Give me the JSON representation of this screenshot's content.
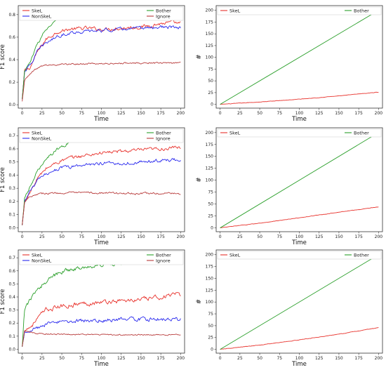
{
  "colors": {
    "SkeL": "#e8322c",
    "NonSkeL": "#2a2aee",
    "Bother": "#2ca02c",
    "Ignore": "#b83b3b"
  },
  "chart_data": [
    {
      "type": "line",
      "panel": "row1-left",
      "xlabel": "Time",
      "ylabel": "F1 score",
      "xlim": [
        -5,
        205
      ],
      "ylim": [
        -0.03,
        0.88
      ],
      "xticks": [
        0,
        25,
        50,
        75,
        100,
        125,
        150,
        175,
        200
      ],
      "yticks": [
        0.0,
        0.2,
        0.4,
        0.6,
        0.8
      ],
      "legend": {
        "left": [
          "SkeL",
          "NonSkeL"
        ],
        "right": [
          "Bother",
          "Ignore"
        ]
      },
      "series": [
        {
          "name": "SkeL",
          "color": "SkeL",
          "noise": 0.013,
          "points": [
            [
              0,
              0.05
            ],
            [
              3,
              0.3
            ],
            [
              10,
              0.33
            ],
            [
              20,
              0.48
            ],
            [
              30,
              0.58
            ],
            [
              45,
              0.65
            ],
            [
              60,
              0.67
            ],
            [
              80,
              0.68
            ],
            [
              100,
              0.67
            ],
            [
              125,
              0.68
            ],
            [
              150,
              0.69
            ],
            [
              175,
              0.72
            ],
            [
              190,
              0.73
            ],
            [
              200,
              0.72
            ]
          ]
        },
        {
          "name": "NonSkeL",
          "color": "NonSkeL",
          "noise": 0.012,
          "points": [
            [
              0,
              0.05
            ],
            [
              3,
              0.3
            ],
            [
              10,
              0.35
            ],
            [
              20,
              0.48
            ],
            [
              30,
              0.55
            ],
            [
              45,
              0.61
            ],
            [
              60,
              0.64
            ],
            [
              80,
              0.65
            ],
            [
              100,
              0.66
            ],
            [
              125,
              0.67
            ],
            [
              150,
              0.68
            ],
            [
              175,
              0.69
            ],
            [
              200,
              0.68
            ]
          ]
        },
        {
          "name": "Bother",
          "color": "Bother",
          "noise": 0.011,
          "points": [
            [
              0,
              0.05
            ],
            [
              3,
              0.3
            ],
            [
              10,
              0.38
            ],
            [
              20,
              0.55
            ],
            [
              30,
              0.67
            ],
            [
              45,
              0.75
            ],
            [
              60,
              0.8
            ],
            [
              80,
              0.82
            ],
            [
              100,
              0.83
            ],
            [
              125,
              0.83
            ],
            [
              150,
              0.84
            ],
            [
              175,
              0.84
            ],
            [
              200,
              0.83
            ]
          ]
        },
        {
          "name": "Ignore",
          "color": "Ignore",
          "noise": 0.006,
          "points": [
            [
              0,
              0.03
            ],
            [
              3,
              0.22
            ],
            [
              10,
              0.28
            ],
            [
              20,
              0.33
            ],
            [
              30,
              0.35
            ],
            [
              50,
              0.36
            ],
            [
              100,
              0.365
            ],
            [
              150,
              0.37
            ],
            [
              200,
              0.37
            ]
          ]
        }
      ]
    },
    {
      "type": "line",
      "panel": "row1-right",
      "xlabel": "Time",
      "ylabel": "#",
      "xlim": [
        -5,
        205
      ],
      "ylim": [
        -8,
        210
      ],
      "xticks": [
        0,
        25,
        50,
        75,
        100,
        125,
        150,
        175,
        200
      ],
      "yticks": [
        0,
        25,
        50,
        75,
        100,
        125,
        150,
        175,
        200
      ],
      "legend": {
        "left": [
          "SkeL"
        ],
        "right": [
          "Bother"
        ]
      },
      "series": [
        {
          "name": "SkeL",
          "color": "SkeL",
          "noise": 0.4,
          "points": [
            [
              0,
              0
            ],
            [
              50,
              5
            ],
            [
              100,
              11
            ],
            [
              150,
              18
            ],
            [
              200,
              26
            ]
          ]
        },
        {
          "name": "Bother",
          "color": "Bother",
          "noise": 0,
          "points": [
            [
              0,
              0
            ],
            [
              200,
              200
            ]
          ]
        }
      ]
    },
    {
      "type": "line",
      "panel": "row2-left",
      "xlabel": "Time",
      "ylabel": "F1 score",
      "xlim": [
        -5,
        205
      ],
      "ylim": [
        -0.03,
        0.76
      ],
      "xticks": [
        0,
        25,
        50,
        75,
        100,
        125,
        150,
        175,
        200
      ],
      "yticks": [
        0.0,
        0.1,
        0.2,
        0.3,
        0.4,
        0.5,
        0.6,
        0.7
      ],
      "legend": {
        "left": [
          "SkeL",
          "NonSkeL"
        ],
        "right": [
          "Bother",
          "Ignore"
        ]
      },
      "series": [
        {
          "name": "SkeL",
          "color": "SkeL",
          "noise": 0.011,
          "points": [
            [
              0,
              0.02
            ],
            [
              3,
              0.2
            ],
            [
              10,
              0.27
            ],
            [
              20,
              0.38
            ],
            [
              30,
              0.45
            ],
            [
              45,
              0.5
            ],
            [
              60,
              0.53
            ],
            [
              80,
              0.55
            ],
            [
              100,
              0.57
            ],
            [
              125,
              0.58
            ],
            [
              150,
              0.59
            ],
            [
              175,
              0.6
            ],
            [
              200,
              0.61
            ]
          ]
        },
        {
          "name": "NonSkeL",
          "color": "NonSkeL",
          "noise": 0.011,
          "points": [
            [
              0,
              0.02
            ],
            [
              3,
              0.2
            ],
            [
              10,
              0.28
            ],
            [
              20,
              0.36
            ],
            [
              30,
              0.41
            ],
            [
              45,
              0.45
            ],
            [
              60,
              0.46
            ],
            [
              80,
              0.48
            ],
            [
              100,
              0.49
            ],
            [
              125,
              0.49
            ],
            [
              150,
              0.5
            ],
            [
              175,
              0.51
            ],
            [
              200,
              0.52
            ]
          ]
        },
        {
          "name": "Bother",
          "color": "Bother",
          "noise": 0.011,
          "points": [
            [
              0,
              0.02
            ],
            [
              3,
              0.22
            ],
            [
              10,
              0.32
            ],
            [
              20,
              0.44
            ],
            [
              30,
              0.53
            ],
            [
              45,
              0.6
            ],
            [
              60,
              0.65
            ],
            [
              80,
              0.68
            ],
            [
              100,
              0.69
            ],
            [
              125,
              0.7
            ],
            [
              150,
              0.7
            ],
            [
              175,
              0.71
            ],
            [
              200,
              0.72
            ]
          ]
        },
        {
          "name": "Ignore",
          "color": "Ignore",
          "noise": 0.006,
          "points": [
            [
              0,
              0.02
            ],
            [
              3,
              0.2
            ],
            [
              10,
              0.24
            ],
            [
              20,
              0.26
            ],
            [
              50,
              0.265
            ],
            [
              100,
              0.265
            ],
            [
              150,
              0.26
            ],
            [
              200,
              0.26
            ]
          ]
        }
      ]
    },
    {
      "type": "line",
      "panel": "row2-right",
      "xlabel": "Time",
      "ylabel": "#",
      "xlim": [
        -5,
        205
      ],
      "ylim": [
        -8,
        210
      ],
      "xticks": [
        0,
        25,
        50,
        75,
        100,
        125,
        150,
        175,
        200
      ],
      "yticks": [
        0,
        25,
        50,
        75,
        100,
        125,
        150,
        175,
        200
      ],
      "legend": {
        "left": [
          "SkeL"
        ],
        "right": [
          "Bother"
        ]
      },
      "series": [
        {
          "name": "SkeL",
          "color": "SkeL",
          "noise": 0.4,
          "points": [
            [
              0,
              0
            ],
            [
              50,
              10
            ],
            [
              100,
              21
            ],
            [
              150,
              33
            ],
            [
              200,
              44
            ]
          ]
        },
        {
          "name": "Bother",
          "color": "Bother",
          "noise": 0,
          "points": [
            [
              0,
              0
            ],
            [
              200,
              200
            ]
          ]
        }
      ]
    },
    {
      "type": "line",
      "panel": "row3-left",
      "xlabel": "Time",
      "ylabel": "F1 score",
      "xlim": [
        -5,
        205
      ],
      "ylim": [
        -0.03,
        0.76
      ],
      "xticks": [
        0,
        25,
        50,
        75,
        100,
        125,
        150,
        175,
        200
      ],
      "yticks": [
        0.0,
        0.1,
        0.2,
        0.3,
        0.4,
        0.5,
        0.6,
        0.7
      ],
      "legend": {
        "left": [
          "SkeL",
          "NonSkeL"
        ],
        "right": [
          "Bother",
          "Ignore"
        ]
      },
      "series": [
        {
          "name": "SkeL",
          "color": "SkeL",
          "noise": 0.014,
          "points": [
            [
              0,
              0.02
            ],
            [
              3,
              0.15
            ],
            [
              10,
              0.17
            ],
            [
              20,
              0.24
            ],
            [
              30,
              0.3
            ],
            [
              50,
              0.33
            ],
            [
              75,
              0.35
            ],
            [
              100,
              0.36
            ],
            [
              125,
              0.37
            ],
            [
              150,
              0.38
            ],
            [
              175,
              0.4
            ],
            [
              195,
              0.42
            ],
            [
              200,
              0.4
            ]
          ]
        },
        {
          "name": "NonSkeL",
          "color": "NonSkeL",
          "noise": 0.012,
          "points": [
            [
              0,
              0.02
            ],
            [
              3,
              0.14
            ],
            [
              10,
              0.15
            ],
            [
              20,
              0.17
            ],
            [
              30,
              0.19
            ],
            [
              50,
              0.21
            ],
            [
              75,
              0.22
            ],
            [
              100,
              0.22
            ],
            [
              125,
              0.23
            ],
            [
              150,
              0.23
            ],
            [
              175,
              0.23
            ],
            [
              200,
              0.23
            ]
          ]
        },
        {
          "name": "Bother",
          "color": "Bother",
          "noise": 0.013,
          "points": [
            [
              0,
              0.02
            ],
            [
              3,
              0.3
            ],
            [
              10,
              0.38
            ],
            [
              20,
              0.46
            ],
            [
              30,
              0.52
            ],
            [
              45,
              0.58
            ],
            [
              60,
              0.61
            ],
            [
              80,
              0.63
            ],
            [
              100,
              0.65
            ],
            [
              125,
              0.66
            ],
            [
              150,
              0.67
            ],
            [
              175,
              0.69
            ],
            [
              190,
              0.7
            ],
            [
              200,
              0.67
            ]
          ]
        },
        {
          "name": "Ignore",
          "color": "Ignore",
          "noise": 0.004,
          "points": [
            [
              0,
              0.02
            ],
            [
              3,
              0.14
            ],
            [
              10,
              0.13
            ],
            [
              20,
              0.12
            ],
            [
              50,
              0.115
            ],
            [
              100,
              0.11
            ],
            [
              150,
              0.11
            ],
            [
              200,
              0.11
            ]
          ]
        }
      ]
    },
    {
      "type": "line",
      "panel": "row3-right",
      "xlabel": "Time",
      "ylabel": "#",
      "xlim": [
        -5,
        205
      ],
      "ylim": [
        -8,
        210
      ],
      "xticks": [
        0,
        25,
        50,
        75,
        100,
        125,
        150,
        175,
        200
      ],
      "yticks": [
        0,
        25,
        50,
        75,
        100,
        125,
        150,
        175,
        200
      ],
      "legend": {
        "left": [
          "SkeL"
        ],
        "right": [
          "Bother"
        ]
      },
      "series": [
        {
          "name": "SkeL",
          "color": "SkeL",
          "noise": 0.4,
          "points": [
            [
              0,
              0
            ],
            [
              50,
              9
            ],
            [
              100,
              20
            ],
            [
              150,
              32
            ],
            [
              200,
              46
            ]
          ]
        },
        {
          "name": "Bother",
          "color": "Bother",
          "noise": 0,
          "points": [
            [
              0,
              0
            ],
            [
              200,
              200
            ]
          ]
        }
      ]
    }
  ]
}
